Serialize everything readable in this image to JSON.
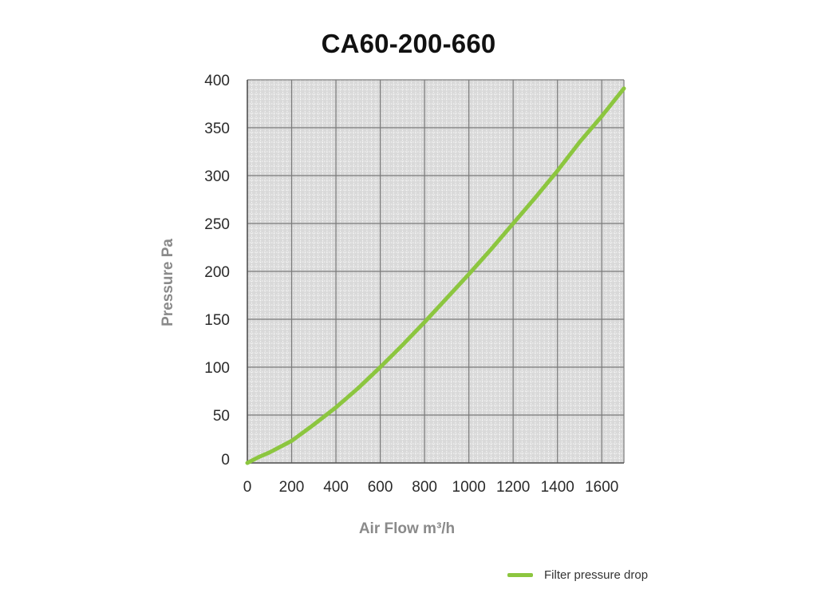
{
  "chart_data": {
    "type": "line",
    "title": "CA60-200-660",
    "xlabel": "Air Flow m³/h",
    "ylabel": "Pressure Pa",
    "xlim": [
      0,
      1700
    ],
    "ylim": [
      0,
      400
    ],
    "x_ticks": [
      "0",
      "200",
      "400",
      "600",
      "800",
      "1000",
      "1200",
      "1400",
      "1600"
    ],
    "y_ticks": [
      "0",
      "50",
      "100",
      "150",
      "200",
      "250",
      "300",
      "350",
      "400"
    ],
    "grid": true,
    "legend_position": "bottom-right",
    "series": [
      {
        "name": "Filter pressure drop",
        "color": "#8cc63f",
        "x": [
          0,
          50,
          100,
          200,
          300,
          400,
          500,
          600,
          700,
          800,
          900,
          1000,
          1100,
          1200,
          1300,
          1400,
          1500,
          1600,
          1700
        ],
        "y": [
          0,
          6,
          11,
          23,
          40,
          58,
          78,
          100,
          123,
          147,
          172,
          197,
          223,
          250,
          277,
          305,
          335,
          362,
          391
        ]
      }
    ]
  },
  "colors": {
    "plot_background": "#d9d9d9",
    "major_grid": "#7a7a7a",
    "minor_grid": "#ffffff",
    "line": "#8cc63f"
  }
}
